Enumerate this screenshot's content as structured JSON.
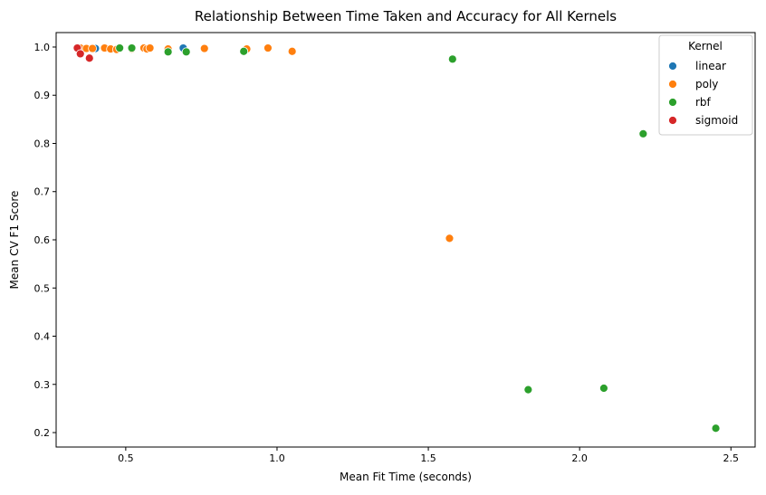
{
  "chart_data": {
    "type": "scatter",
    "title": "Relationship Between Time Taken and Accuracy for All Kernels",
    "xlabel": "Mean Fit Time (seconds)",
    "ylabel": "Mean CV F1 Score",
    "xlim": [
      0.27,
      2.58
    ],
    "ylim": [
      0.17,
      1.03
    ],
    "xticks": [
      0.5,
      1.0,
      1.5,
      2.0,
      2.5
    ],
    "xtick_labels": [
      "0.5",
      "1.0",
      "1.5",
      "2.0",
      "2.5"
    ],
    "yticks": [
      0.2,
      0.3,
      0.4,
      0.5,
      0.6,
      0.7,
      0.8,
      0.9,
      1.0
    ],
    "ytick_labels": [
      "0.2",
      "0.3",
      "0.4",
      "0.5",
      "0.6",
      "0.7",
      "0.8",
      "0.9",
      "1.0"
    ],
    "grid": false,
    "legend": {
      "title": "Kernel",
      "placement": "top-right"
    },
    "series": [
      {
        "name": "linear",
        "color": "#1f77b4",
        "points": [
          [
            0.34,
            0.998
          ],
          [
            0.4,
            0.997
          ],
          [
            0.69,
            0.998
          ]
        ]
      },
      {
        "name": "poly",
        "color": "#ff7f0e",
        "points": [
          [
            0.35,
            0.998
          ],
          [
            0.37,
            0.997
          ],
          [
            0.39,
            0.997
          ],
          [
            0.43,
            0.998
          ],
          [
            0.45,
            0.996
          ],
          [
            0.47,
            0.995
          ],
          [
            0.52,
            0.996
          ],
          [
            0.56,
            0.998
          ],
          [
            0.57,
            0.996
          ],
          [
            0.58,
            0.998
          ],
          [
            0.64,
            0.996
          ],
          [
            0.76,
            0.997
          ],
          [
            0.9,
            0.996
          ],
          [
            0.97,
            0.998
          ],
          [
            1.05,
            0.991
          ],
          [
            1.57,
            0.603
          ]
        ]
      },
      {
        "name": "rbf",
        "color": "#2ca02c",
        "points": [
          [
            0.34,
            0.998
          ],
          [
            0.48,
            0.998
          ],
          [
            0.52,
            0.998
          ],
          [
            0.64,
            0.99
          ],
          [
            0.7,
            0.99
          ],
          [
            0.89,
            0.991
          ],
          [
            1.58,
            0.975
          ],
          [
            1.83,
            0.289
          ],
          [
            2.08,
            0.292
          ],
          [
            2.21,
            0.82
          ],
          [
            2.45,
            0.209
          ]
        ]
      },
      {
        "name": "sigmoid",
        "color": "#d62728",
        "points": [
          [
            0.34,
            0.998
          ],
          [
            0.35,
            0.986
          ],
          [
            0.38,
            0.977
          ]
        ]
      }
    ]
  }
}
